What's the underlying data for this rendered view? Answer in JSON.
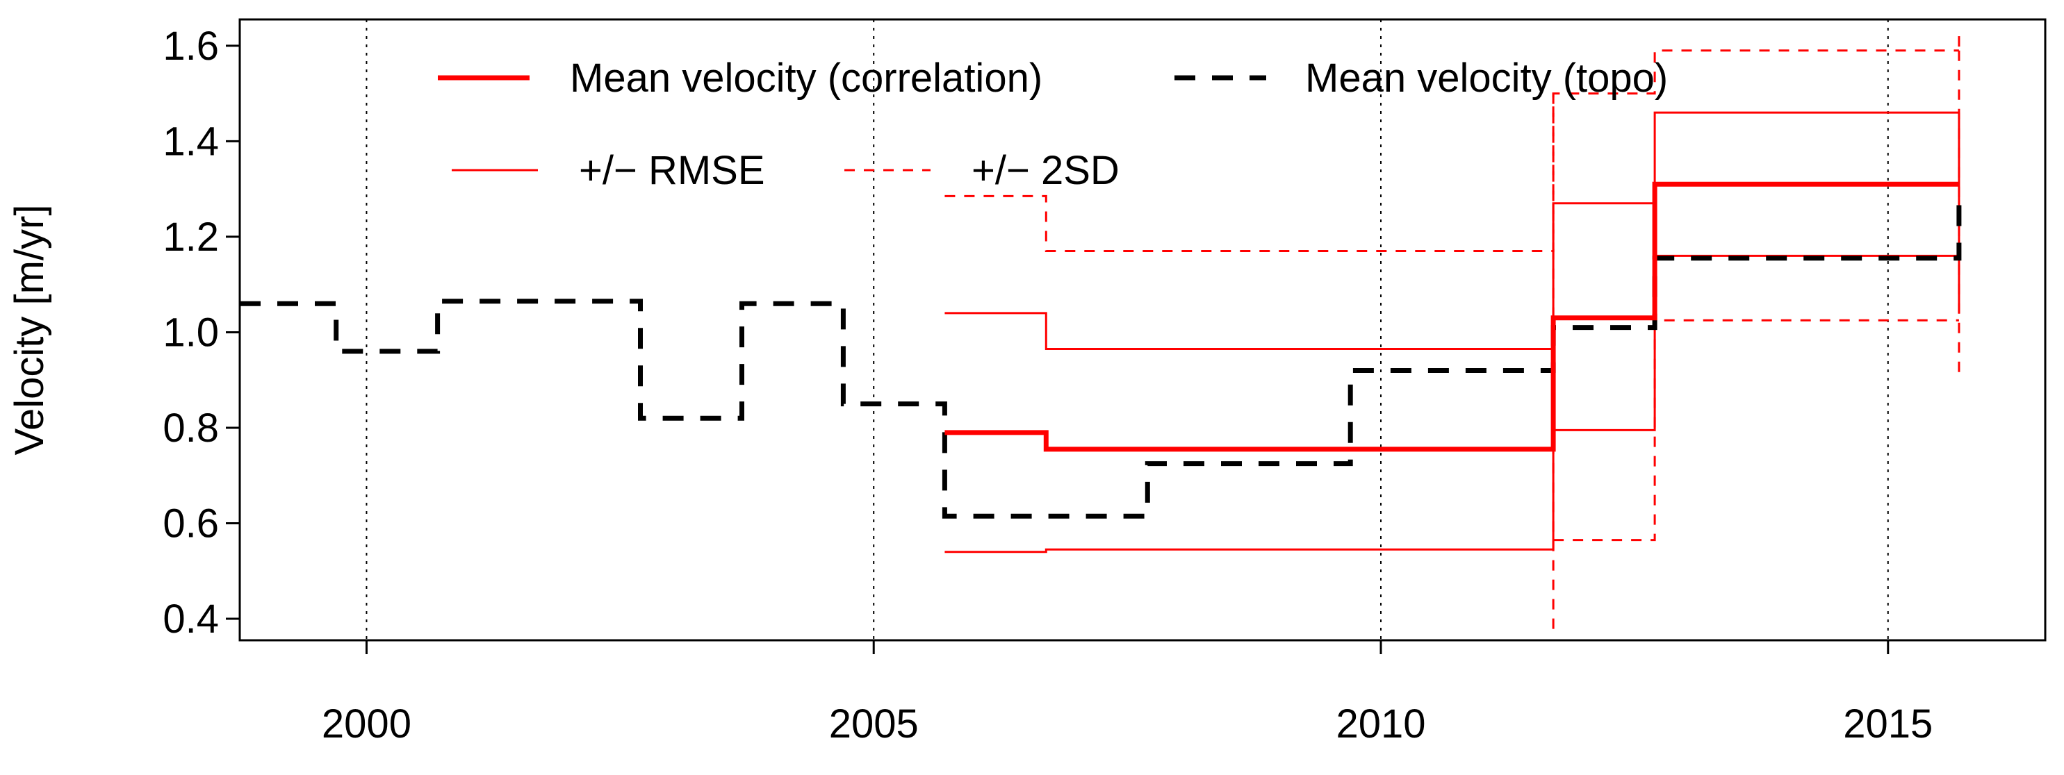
{
  "chart_data": {
    "type": "line",
    "title": "",
    "xlabel": "",
    "ylabel": "Velocity [m/yr]",
    "xlim": [
      1998.75,
      2016.55
    ],
    "ylim": [
      0.355,
      1.655
    ],
    "xticks": [
      2000,
      2005,
      2010,
      2015
    ],
    "xtick_labels": [
      "2000",
      "2005",
      "2010",
      "2015"
    ],
    "yticks": [
      0.4,
      0.6,
      0.8,
      1.0,
      1.2,
      1.4,
      1.6
    ],
    "ytick_labels": [
      "0.4",
      "0.6",
      "0.8",
      "1.0",
      "1.2",
      "1.4",
      "1.6"
    ],
    "vertical_gridlines_at": [
      2000,
      2005,
      2010,
      2015
    ],
    "legend_position": "top",
    "series": [
      {
        "name": "Mean velocity (correlation)",
        "color": "#ff0000",
        "style": "solid-thick",
        "steps": [
          {
            "start": 2005.7,
            "end": 2006.7,
            "value": 0.79
          },
          {
            "start": 2006.7,
            "end": 2011.7,
            "value": 0.755
          },
          {
            "start": 2011.7,
            "end": 2012.7,
            "value": 1.03
          },
          {
            "start": 2012.7,
            "end": 2015.7,
            "value": 1.31
          }
        ]
      },
      {
        "name": "Mean velocity (topo)",
        "color": "#000000",
        "style": "dashed-thick",
        "steps": [
          {
            "start": 1998.75,
            "end": 1999.7,
            "value": 1.06
          },
          {
            "start": 1999.7,
            "end": 2000.7,
            "value": 0.96
          },
          {
            "start": 2000.7,
            "end": 2002.7,
            "value": 1.065
          },
          {
            "start": 2002.7,
            "end": 2003.7,
            "value": 0.82
          },
          {
            "start": 2003.7,
            "end": 2004.7,
            "value": 1.06
          },
          {
            "start": 2004.7,
            "end": 2005.7,
            "value": 0.85
          },
          {
            "start": 2005.7,
            "end": 2007.7,
            "value": 0.615
          },
          {
            "start": 2007.7,
            "end": 2009.7,
            "value": 0.725
          },
          {
            "start": 2009.7,
            "end": 2011.7,
            "value": 0.92
          },
          {
            "start": 2011.7,
            "end": 2012.7,
            "value": 1.01
          },
          {
            "start": 2012.7,
            "end": 2015.7,
            "value": 1.155
          },
          {
            "start": 2015.7,
            "end": 2015.7,
            "value": 1.28
          }
        ]
      },
      {
        "name": "+/− RMSE",
        "color": "#ff0000",
        "style": "solid-thin",
        "band": true,
        "upper": [
          {
            "start": 2005.7,
            "end": 2006.7,
            "value": 1.04
          },
          {
            "start": 2006.7,
            "end": 2011.7,
            "value": 0.965
          },
          {
            "start": 2011.7,
            "end": 2012.7,
            "value": 1.27
          },
          {
            "start": 2012.7,
            "end": 2015.7,
            "value": 1.46
          }
        ],
        "lower": [
          {
            "start": 2005.7,
            "end": 2006.7,
            "value": 0.54
          },
          {
            "start": 2006.7,
            "end": 2011.7,
            "value": 0.545
          },
          {
            "start": 2011.7,
            "end": 2012.7,
            "value": 0.795
          },
          {
            "start": 2012.7,
            "end": 2015.7,
            "value": 1.16
          }
        ],
        "tail_min": 1.04
      },
      {
        "name": "+/− 2SD",
        "color": "#ff0000",
        "style": "dashed-thin",
        "band": true,
        "upper": [
          {
            "start": 2005.7,
            "end": 2006.7,
            "value": 1.285
          },
          {
            "start": 2006.7,
            "end": 2011.7,
            "value": 1.17
          },
          {
            "start": 2011.7,
            "end": 2012.7,
            "value": 1.5
          },
          {
            "start": 2012.7,
            "end": 2015.7,
            "value": 1.59
          }
        ],
        "lower": [
          {
            "start": 2011.7,
            "end": 2012.7,
            "value": 0.565
          },
          {
            "start": 2012.7,
            "end": 2015.7,
            "value": 1.025
          }
        ],
        "connector_bottoms": [
          {
            "x": 2011.7,
            "value": 0.37
          },
          {
            "x": 2015.7,
            "value": 0.9
          }
        ],
        "connector_tops": [
          {
            "x": 2015.7,
            "value": 1.62
          }
        ]
      }
    ]
  }
}
